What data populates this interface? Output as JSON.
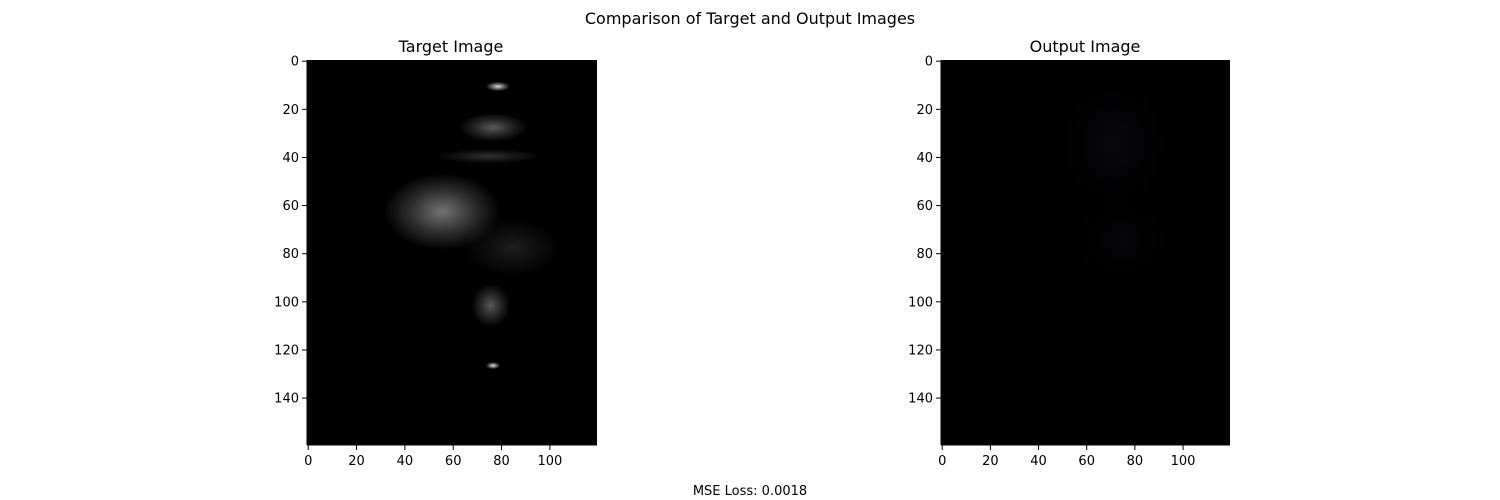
{
  "figure": {
    "suptitle": "Comparison of Target and Output Images",
    "footer": "MSE Loss: 0.0018"
  },
  "chart_data": [
    {
      "type": "heatmap",
      "title": "Target Image",
      "image_width": 120,
      "image_height": 160,
      "xlim": [
        0,
        120
      ],
      "ylim": [
        160,
        0
      ],
      "x_ticks": [
        0,
        20,
        40,
        60,
        80,
        100
      ],
      "y_ticks": [
        0,
        20,
        40,
        60,
        80,
        100,
        120,
        140
      ],
      "background_color": "#000000",
      "colormap": "gray",
      "bright_regions": [
        {
          "x": 79,
          "y": 11,
          "rx": 5,
          "ry": 2,
          "intensity": 0.85
        },
        {
          "x": 77,
          "y": 28,
          "rx": 14,
          "ry": 6,
          "intensity": 0.35
        },
        {
          "x": 56,
          "y": 63,
          "rx": 24,
          "ry": 16,
          "intensity": 0.45
        },
        {
          "x": 75,
          "y": 40,
          "rx": 22,
          "ry": 3,
          "intensity": 0.2
        },
        {
          "x": 76,
          "y": 102,
          "rx": 8,
          "ry": 9,
          "intensity": 0.35
        },
        {
          "x": 77,
          "y": 127,
          "rx": 3,
          "ry": 1.5,
          "intensity": 0.9
        },
        {
          "x": 85,
          "y": 78,
          "rx": 20,
          "ry": 12,
          "intensity": 0.12
        }
      ]
    },
    {
      "type": "heatmap",
      "title": "Output Image",
      "image_width": 120,
      "image_height": 160,
      "xlim": [
        0,
        120
      ],
      "ylim": [
        160,
        0
      ],
      "x_ticks": [
        0,
        20,
        40,
        60,
        80,
        100
      ],
      "y_ticks": [
        0,
        20,
        40,
        60,
        80,
        100,
        120,
        140
      ],
      "background_color": "#000000",
      "colormap": "rgb",
      "bright_regions": [
        {
          "x": 72,
          "y": 35,
          "rx": 22,
          "ry": 28,
          "intensity": 0.06
        },
        {
          "x": 75,
          "y": 75,
          "rx": 20,
          "ry": 20,
          "intensity": 0.04
        }
      ]
    }
  ]
}
